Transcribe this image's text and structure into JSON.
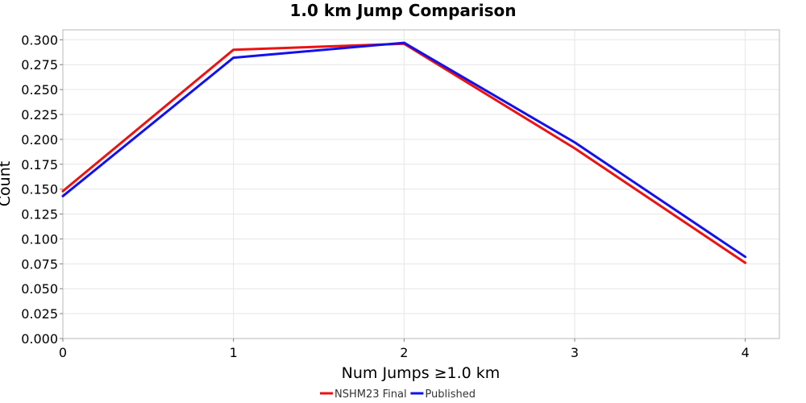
{
  "chart_data": {
    "type": "line",
    "title": "1.0 km Jump Comparison",
    "xlabel": "Num Jumps ≥1.0 km",
    "ylabel": "Count",
    "x": [
      0,
      1,
      2,
      3,
      4
    ],
    "xlim": [
      0,
      4.2
    ],
    "ylim": [
      0,
      0.31
    ],
    "xticks": [
      "0",
      "1",
      "2",
      "3",
      "4"
    ],
    "yticks": [
      "0.000",
      "0.025",
      "0.050",
      "0.075",
      "0.100",
      "0.125",
      "0.150",
      "0.175",
      "0.200",
      "0.225",
      "0.250",
      "0.275",
      "0.300"
    ],
    "grid": true,
    "legend_position": "bottom-center",
    "series": [
      {
        "name": "NSHM23 Final",
        "color": "#ee1111",
        "values": [
          0.148,
          0.29,
          0.296,
          0.191,
          0.076
        ]
      },
      {
        "name": "Published",
        "color": "#1111ee",
        "values": [
          0.143,
          0.282,
          0.297,
          0.197,
          0.082
        ]
      }
    ]
  }
}
